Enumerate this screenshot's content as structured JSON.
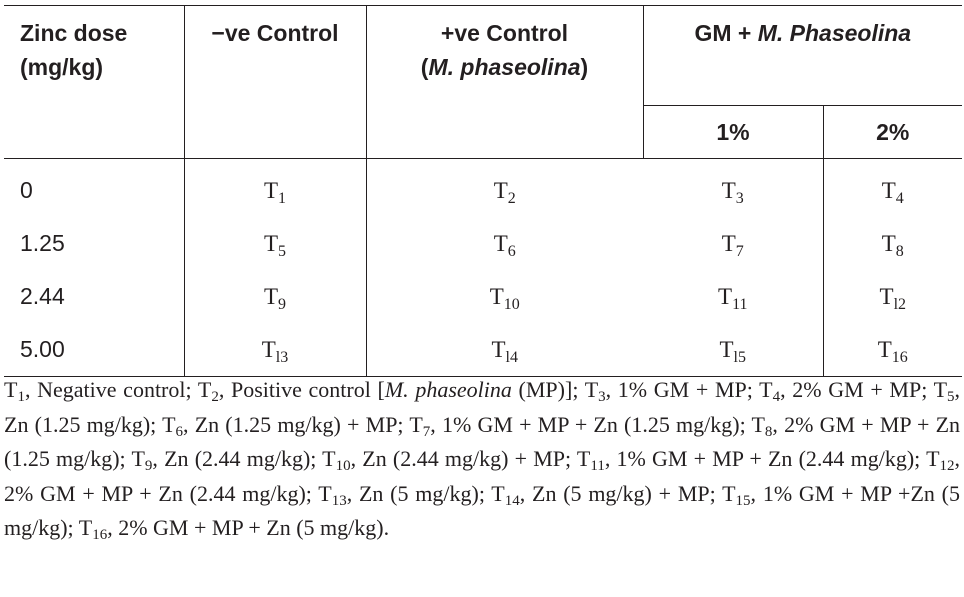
{
  "table": {
    "header": {
      "zinc_dose_line1": "Zinc dose",
      "zinc_dose_line2": "(mg/kg)",
      "neg_control": "−ve Control",
      "pos_control_line1": "+ve Control",
      "pos_control_open": "(",
      "pos_control_italic": "M. phaseolina",
      "pos_control_close": ")",
      "gm_prefix": "GM + ",
      "gm_italic": "M. Phaseolina",
      "sub_1pct": "1%",
      "sub_2pct": "2%"
    },
    "rows": [
      {
        "zinc": "0",
        "cells": [
          {
            "t": "T",
            "n": "1"
          },
          {
            "t": "T",
            "n": "2"
          },
          {
            "t": "T",
            "n": "3"
          },
          {
            "t": "T",
            "n": "4"
          }
        ]
      },
      {
        "zinc": "1.25",
        "cells": [
          {
            "t": "T",
            "n": "5"
          },
          {
            "t": "T",
            "n": "6"
          },
          {
            "t": "T",
            "n": "7"
          },
          {
            "t": "T",
            "n": "8"
          }
        ]
      },
      {
        "zinc": "2.44",
        "cells": [
          {
            "t": "T",
            "n": "9"
          },
          {
            "t": "T",
            "n": "10"
          },
          {
            "t": "T",
            "n": "11"
          },
          {
            "t": "T",
            "n": "l2"
          }
        ]
      },
      {
        "zinc": "5.00",
        "cells": [
          {
            "t": "T",
            "n": "l3"
          },
          {
            "t": "T",
            "n": "l4"
          },
          {
            "t": "T",
            "n": "l5"
          },
          {
            "t": "T",
            "n": "16"
          }
        ]
      }
    ]
  },
  "footnote": {
    "segments": [
      {
        "text": "T"
      },
      {
        "sub": "1"
      },
      {
        "text": ", Negative control; T"
      },
      {
        "sub": "2"
      },
      {
        "text": ", Positive control ["
      },
      {
        "italic": "M. phaseolina"
      },
      {
        "text": " (MP)]; T"
      },
      {
        "sub": "3"
      },
      {
        "text": ", 1% GM + MP; T"
      },
      {
        "sub": "4"
      },
      {
        "text": ", 2% GM + MP; T"
      },
      {
        "sub": "5"
      },
      {
        "text": ", Zn (1.25 mg/kg); T"
      },
      {
        "sub": "6"
      },
      {
        "text": ", Zn (1.25 mg/kg) + MP; T"
      },
      {
        "sub": "7"
      },
      {
        "text": ", 1% GM + MP + Zn (1.25 mg/kg); T"
      },
      {
        "sub": "8"
      },
      {
        "text": ", 2% GM + MP + Zn (1.25 mg/kg); T"
      },
      {
        "sub": "9"
      },
      {
        "text": ", Zn (2.44 mg/kg); T"
      },
      {
        "sub": "10"
      },
      {
        "text": ", Zn (2.44 mg/kg) + MP; T"
      },
      {
        "sub": "11"
      },
      {
        "text": ", 1% GM + MP + Zn (2.44 mg/kg); T"
      },
      {
        "sub": "12"
      },
      {
        "text": ", 2% GM + MP + Zn (2.44 mg/kg); T"
      },
      {
        "sub": "13"
      },
      {
        "text": ", Zn (5 mg/kg); T"
      },
      {
        "sub": "14"
      },
      {
        "text": ", Zn (5 mg/kg) + MP; T"
      },
      {
        "sub": "15"
      },
      {
        "text": ", 1% GM + MP +Zn (5 mg/kg); T"
      },
      {
        "sub": "16"
      },
      {
        "text": ", 2% GM + MP + Zn (5 mg/kg)."
      }
    ]
  }
}
